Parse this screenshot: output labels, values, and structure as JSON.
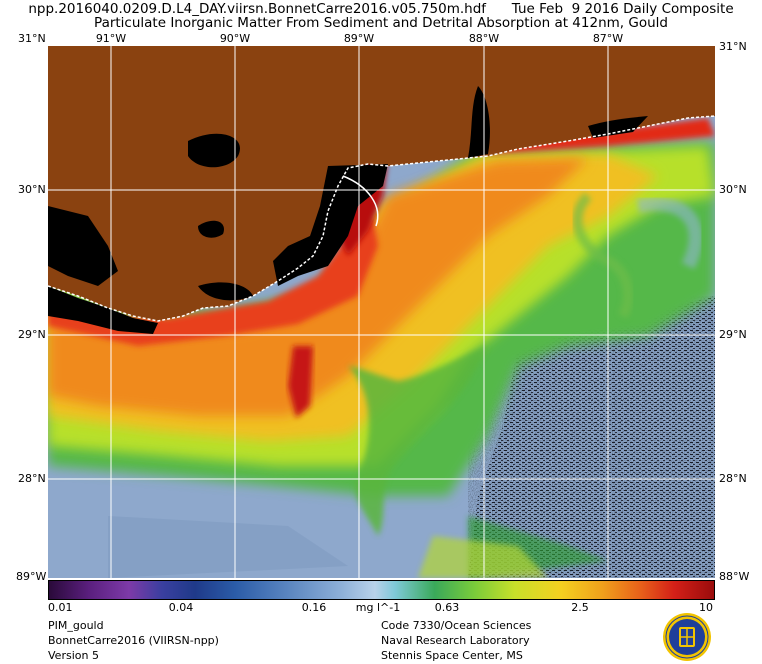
{
  "header": {
    "line1": "npp.2016040.0209.D.L4_DAY.viirsn.BonnetCarre2016.v05.750m.hdf      Tue Feb  9 2016 Daily Composite",
    "line2": "Particulate Inorganic Matter From Sediment and Detrital Absorption at 412nm, Gould"
  },
  "map": {
    "top_labels": [
      "31°N",
      "91°W",
      "90°W",
      "89°W",
      "88°W",
      "87°W",
      "31°N"
    ],
    "bottom_corner_labels": [
      "89°W",
      "88°W"
    ],
    "left_lat_labels": [
      "30°N",
      "29°N",
      "28°N"
    ],
    "right_lat_labels": [
      "30°N",
      "29°N",
      "28°N"
    ],
    "land_color": "#8a4210",
    "no_data_color": "#000000",
    "grid_color": "#ffffff"
  },
  "colorbar": {
    "tick_labels": [
      "0.01",
      "0.04",
      "0.16",
      "0.63",
      "2.5",
      "10"
    ],
    "units": "mg l^-1",
    "min": 0.01,
    "max": 10,
    "scale": "log"
  },
  "footer": {
    "left": [
      "PIM_gould",
      "BonnetCarre2016 (VIIRSN-npp)",
      "Version 5"
    ],
    "right": [
      "Code 7330/Ocean Sciences",
      "Naval Research Laboratory",
      "Stennis Space Center, MS"
    ]
  }
}
